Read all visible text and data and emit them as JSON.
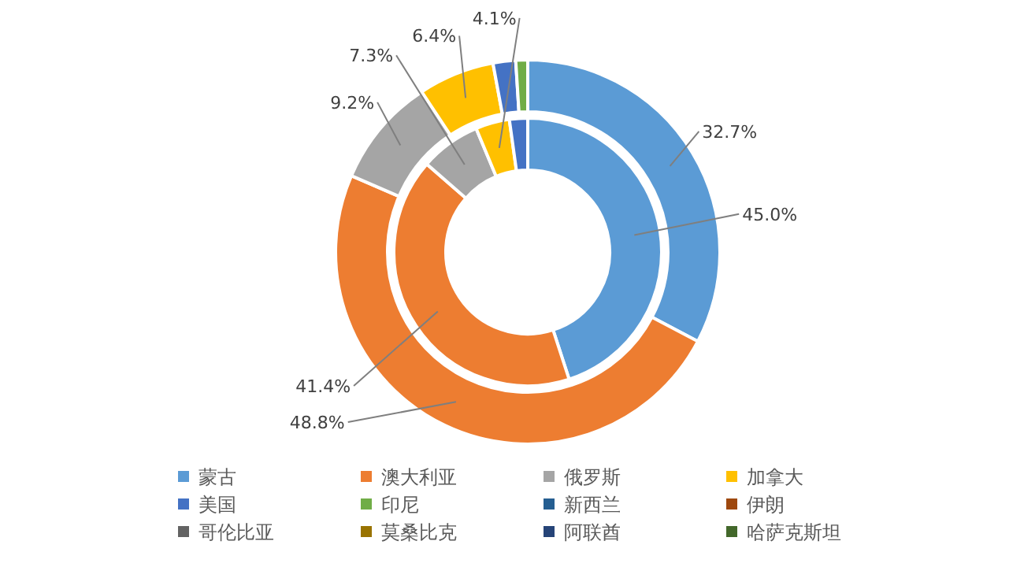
{
  "chart_data": {
    "type": "donut",
    "categories": [
      "蒙古",
      "澳大利亚",
      "俄罗斯",
      "加拿大",
      "美国",
      "印尼",
      "新西兰",
      "伊朗",
      "哥伦比亚",
      "莫桑比克",
      "阿联酋",
      "哈萨克斯坦"
    ],
    "colors": [
      "#5b9bd5",
      "#ed7d31",
      "#a5a5a5",
      "#ffc000",
      "#4472c4",
      "#70ad47",
      "#255e91",
      "#9e480e",
      "#636363",
      "#997300",
      "#264478",
      "#43682b"
    ],
    "series": [
      {
        "values": [
          45.0,
          41.4,
          7.3,
          4.1,
          2.2,
          null,
          null,
          null,
          null,
          null,
          null,
          null
        ],
        "value_labels": [
          "45.0%",
          "41.4%",
          "7.3%",
          "4.1%",
          null,
          null,
          null,
          null,
          null,
          null,
          null,
          null
        ]
      },
      {
        "values": [
          32.7,
          48.8,
          9.2,
          6.4,
          1.9,
          1.0,
          null,
          null,
          null,
          null,
          null,
          null
        ],
        "value_labels": [
          "32.7%",
          "48.8%",
          "9.2%",
          "6.4%",
          null,
          null,
          null,
          null,
          null,
          null,
          null,
          null
        ]
      }
    ],
    "legend": "bottom"
  }
}
